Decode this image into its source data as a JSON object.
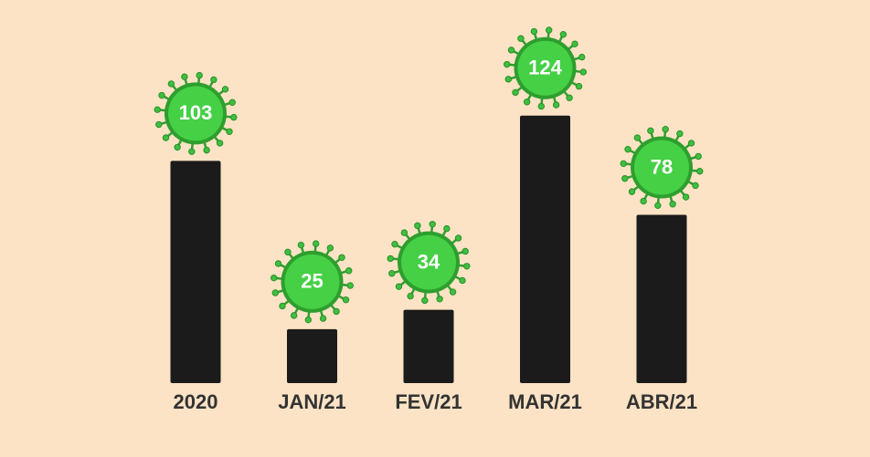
{
  "chart_data": {
    "type": "bar",
    "categories": [
      "2020",
      "JAN/21",
      "FEV/21",
      "MAR/21",
      "ABR/21"
    ],
    "values": [
      103,
      25,
      34,
      124,
      78
    ],
    "color": "#1b1b1b"
  }
}
